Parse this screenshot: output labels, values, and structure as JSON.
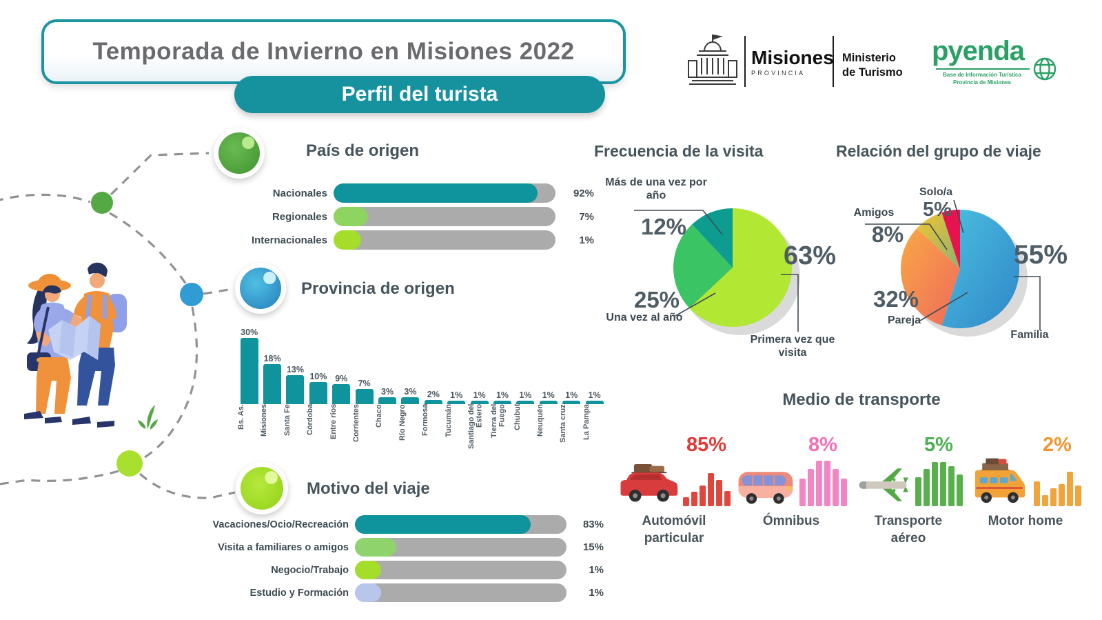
{
  "banner": {
    "title": "Temporada de Invierno en Misiones 2022",
    "subtitle": "Perfil del turista",
    "accent_color": "#16929e",
    "title_color": "#6a6b6e"
  },
  "logos": {
    "misiones": {
      "name": "Misiones",
      "sub": "PROVINCIA"
    },
    "ministerio": {
      "label": "Ministerio de Turismo"
    },
    "pyenda": {
      "name": "pyenda",
      "tagline": "Base de Información Turística Provincia de Misiones",
      "color": "#2aa164"
    }
  },
  "chart_data": [
    {
      "type": "bar",
      "orientation": "horizontal",
      "title": "País de origen",
      "categories": [
        "Nacionales",
        "Regionales",
        "Internacionales"
      ],
      "values": [
        92,
        7,
        1
      ],
      "value_labels": [
        "92%",
        "7%",
        "1%"
      ],
      "colors": [
        "#0f939d",
        "#8ed460",
        "#a5dd2b"
      ],
      "track_color": "#ababab"
    },
    {
      "type": "bar",
      "orientation": "vertical",
      "title": "Provincia de origen",
      "categories": [
        "Bs. As.",
        "Misiones",
        "Santa Fe",
        "Córdoba",
        "Entre ríos",
        "Corrientes",
        "Chaco",
        "Río Negro",
        "Formosa",
        "Tucumán",
        "Santiago del Estero",
        "Tierra del Fuego",
        "Chubut",
        "Neuquén",
        "Santa cruz",
        "La Pampa"
      ],
      "values": [
        30,
        18,
        13,
        10,
        9,
        7,
        3,
        3,
        2,
        1,
        1,
        1,
        1,
        1,
        1,
        1
      ],
      "value_labels": [
        "30%",
        "18%",
        "13%",
        "10%",
        "9%",
        "7%",
        "3%",
        "3%",
        "2%",
        "1%",
        "1%",
        "1%",
        "1%",
        "1%",
        "1%",
        "1%"
      ],
      "bar_color": "#0f939d"
    },
    {
      "type": "pie",
      "title": "Frecuencia de la visita",
      "slices": [
        {
          "label": "Primera vez que visita",
          "value": 63,
          "value_label": "63%",
          "color": "#b2e733"
        },
        {
          "label": "Una vez al año",
          "value": 25,
          "value_label": "25%",
          "color": "#3bc464"
        },
        {
          "label": "Más de una vez por año",
          "value": 12,
          "value_label": "12%",
          "color": "#0d9c8f"
        }
      ]
    },
    {
      "type": "pie",
      "title": "Relación del grupo de viaje",
      "slices": [
        {
          "label": "Familia",
          "value": 55,
          "value_label": "55%",
          "color": "#4cc0e0",
          "color2": "#2f86c8"
        },
        {
          "label": "Pareja",
          "value": 32,
          "value_label": "32%",
          "color": "#f9a845",
          "color2": "#ef6a5c"
        },
        {
          "label": "Amigos",
          "value": 8,
          "value_label": "8%",
          "color": "#f2c62e",
          "color2": "#8fb073"
        },
        {
          "label": "Solo/a",
          "value": 5,
          "value_label": "5%",
          "color": "#e5134e"
        }
      ]
    },
    {
      "type": "bar",
      "orientation": "horizontal",
      "title": "Motivo del viaje",
      "categories": [
        "Vacaciones/Ocio/Recreación",
        "Visita a familiares o amigos",
        "Negocio/Trabajo",
        "Estudio y Formación"
      ],
      "values": [
        83,
        15,
        1,
        1
      ],
      "value_labels": [
        "83%",
        "15%",
        "1%",
        "1%"
      ],
      "colors": [
        "#0f939d",
        "#8fd36d",
        "#a5dd2b",
        "#b9c6ec"
      ],
      "track_color": "#ababab"
    },
    {
      "type": "pictogram",
      "title": "Medio de transporte",
      "items": [
        {
          "label": "Automóvil particular",
          "value": 85,
          "value_label": "85%",
          "color": "#e53935",
          "bar_color": "#e0453e",
          "icon": "car",
          "eq_bars": [
            13,
            21,
            30,
            48,
            38,
            22
          ]
        },
        {
          "label": "Ómnibus",
          "value": 8,
          "value_label": "8%",
          "color": "#f46fb5",
          "bar_color": "#f285c3",
          "icon": "bus",
          "eq_bars": [
            40,
            54,
            66,
            66,
            54,
            40
          ]
        },
        {
          "label": "Transporte aéreo",
          "value": 5,
          "value_label": "5%",
          "color": "#4caf50",
          "bar_color": "#57b04c",
          "icon": "plane",
          "eq_bars": [
            42,
            54,
            64,
            64,
            58,
            46
          ]
        },
        {
          "label": "Motor home",
          "value": 2,
          "value_label": "2%",
          "color": "#f2952e",
          "bar_color": "#f2a43c",
          "icon": "motorhome",
          "eq_bars": [
            36,
            16,
            26,
            32,
            50,
            30
          ]
        }
      ]
    }
  ]
}
